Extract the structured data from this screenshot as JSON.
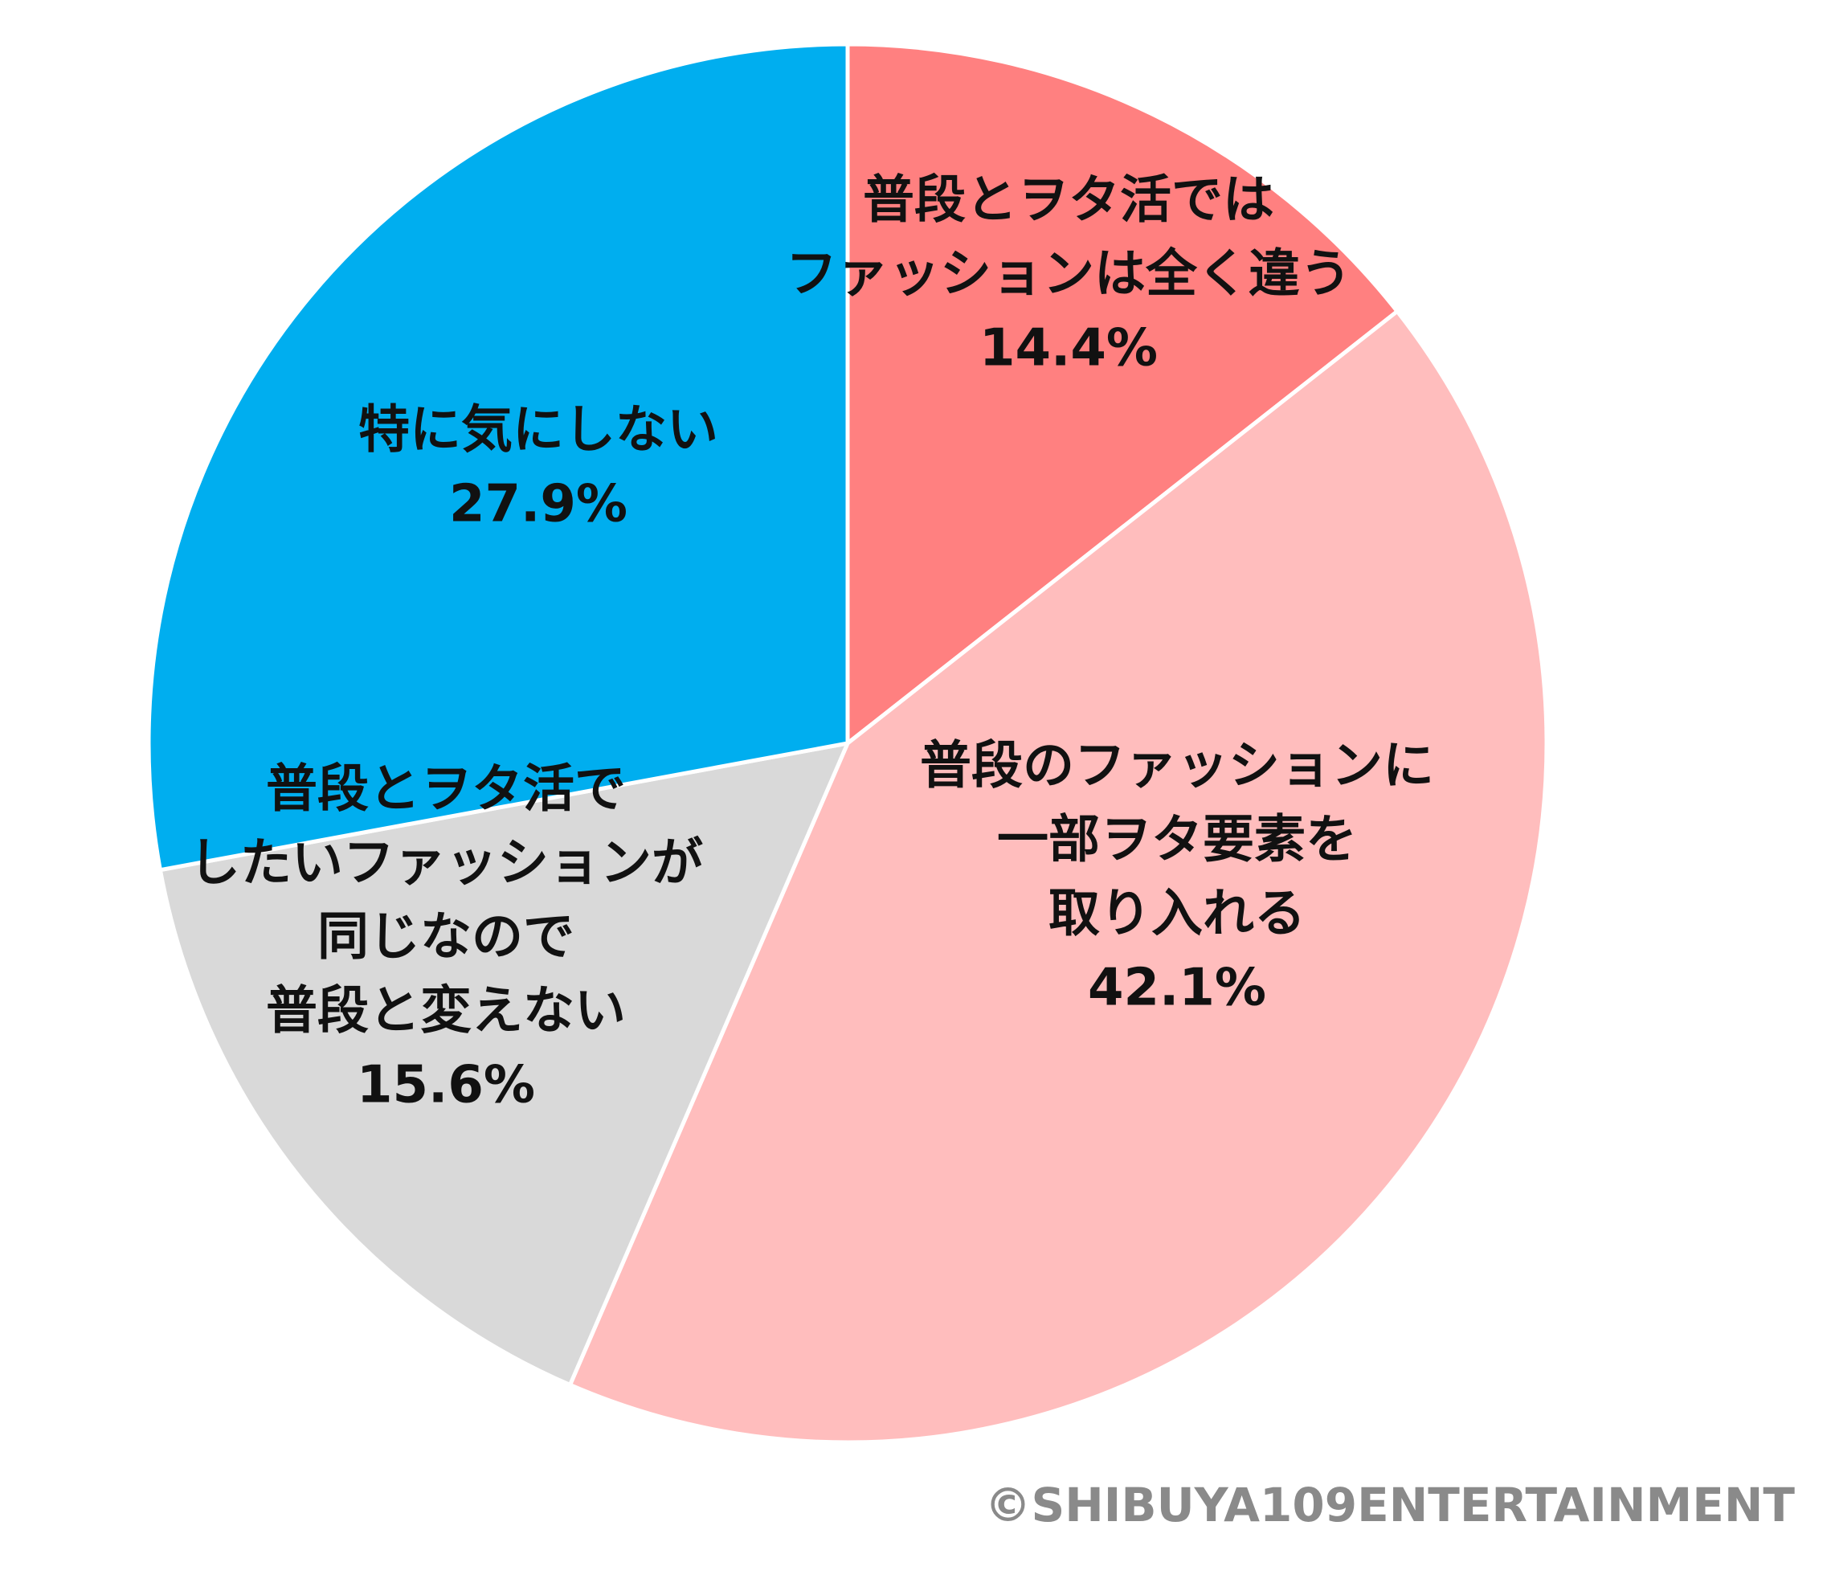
{
  "chart_data": {
    "type": "pie",
    "start_angle_deg": 0,
    "direction": "clockwise",
    "slices": [
      {
        "label_lines": [
          "普段とヲタ活では",
          "ファッションは全く違う"
        ],
        "value": 14.4,
        "pct_text": "14.4%",
        "color": "#ff8080"
      },
      {
        "label_lines": [
          "普段のファッションに",
          "一部ヲタ要素を",
          "取り入れる"
        ],
        "value": 42.1,
        "pct_text": "42.1%",
        "color": "#ffbdbd"
      },
      {
        "label_lines": [
          "普段とヲタ活で",
          "したいファッションが",
          "同じなので",
          "普段と変えない"
        ],
        "value": 15.6,
        "pct_text": "15.6%",
        "color": "#d9d9d9"
      },
      {
        "label_lines": [
          "特に気にしない"
        ],
        "value": 27.9,
        "pct_text": "27.9%",
        "color": "#00aeef"
      }
    ]
  },
  "copyright": "©SHIBUYA109ENTERTAINMENT"
}
